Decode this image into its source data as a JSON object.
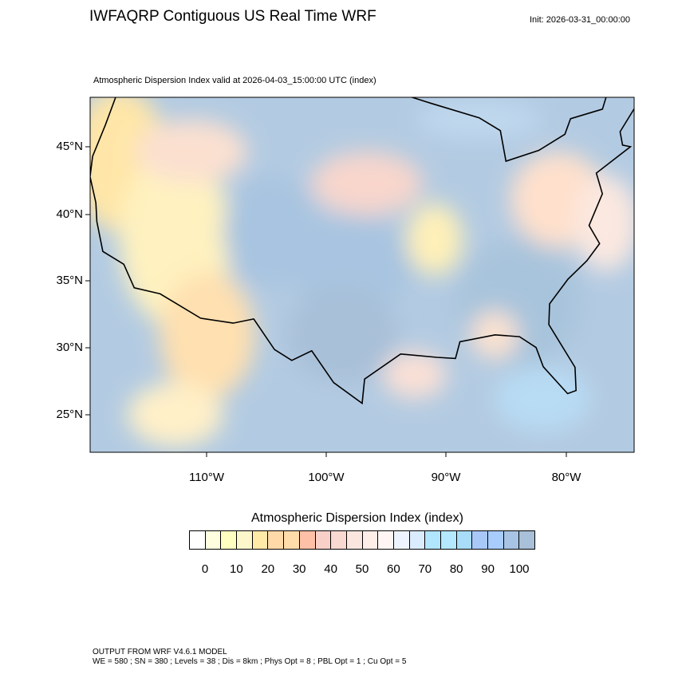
{
  "header": {
    "title": "IWFAQRP Contiguous US Real Time WRF",
    "init": "Init: 2026-03-31_00:00:00",
    "subtitle": "Atmospheric Dispersion Index valid at 2026-04-03_15:00:00 UTC   (index)"
  },
  "map": {
    "lat_labels": [
      "45°N",
      "40°N",
      "35°N",
      "30°N",
      "25°N"
    ],
    "lon_labels": [
      "110°W",
      "100°W",
      "90°W",
      "80°W"
    ],
    "colors": {
      "ocean": "#b3cbe2",
      "border": "#000000"
    }
  },
  "colorbar": {
    "title": "Atmospheric Dispersion Index  (index)",
    "labels": [
      "0",
      "10",
      "20",
      "30",
      "40",
      "50",
      "60",
      "70",
      "80",
      "90",
      "100"
    ],
    "colors": [
      "#ffffff",
      "#ffffe0",
      "#ffffc0",
      "#fcf8cc",
      "#ffeaa8",
      "#ffd9a8",
      "#ffdcaa",
      "#ffc0a8",
      "#f8d0c8",
      "#f8d8d0",
      "#fae6de",
      "#fdeee8",
      "#fff6f4",
      "#eef4ff",
      "#dcecff",
      "#b0e6ff",
      "#b4e8ff",
      "#a8dcf8",
      "#a8c8f8",
      "#a8ccfc",
      "#a8c4e4",
      "#a8c0d8"
    ]
  },
  "footer": {
    "line1": "OUTPUT FROM WRF V4.6.1 MODEL",
    "line2": "WE = 580 ; SN = 380 ; Levels = 38 ; Dis = 8km ; Phys Opt = 8 ; PBL Opt = 1 ; Cu Opt = 5"
  }
}
